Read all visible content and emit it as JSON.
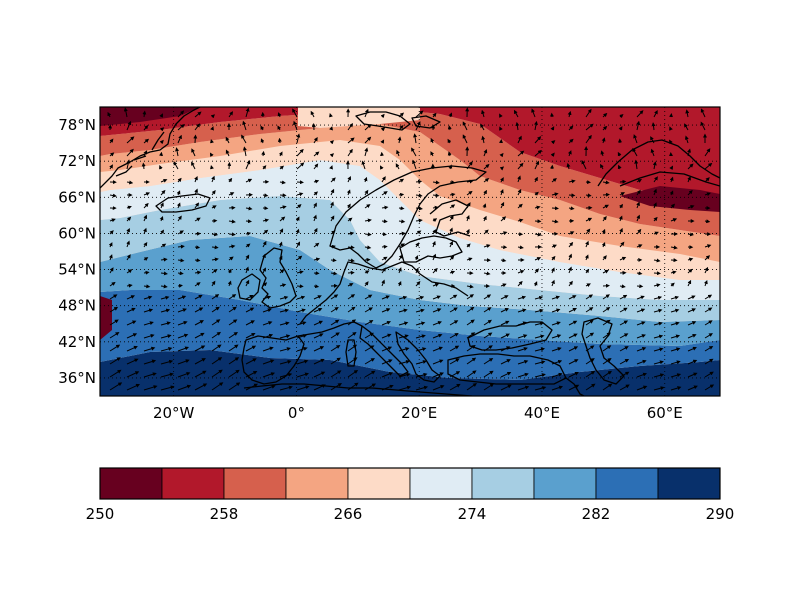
{
  "map": {
    "projection": "cylindrical",
    "lon_range": [
      -32,
      69
    ],
    "lat_range": [
      33,
      81
    ],
    "lat_ticks": [
      {
        "value": 36,
        "label": "36°N"
      },
      {
        "value": 42,
        "label": "42°N"
      },
      {
        "value": 48,
        "label": "48°N"
      },
      {
        "value": 54,
        "label": "54°N"
      },
      {
        "value": 60,
        "label": "60°N"
      },
      {
        "value": 66,
        "label": "66°N"
      },
      {
        "value": 72,
        "label": "72°N"
      },
      {
        "value": 78,
        "label": "78°N"
      }
    ],
    "lon_ticks": [
      {
        "value": -20,
        "label": "20°W"
      },
      {
        "value": 0,
        "label": "0°"
      },
      {
        "value": 20,
        "label": "20°E"
      },
      {
        "value": 40,
        "label": "40°E"
      },
      {
        "value": 60,
        "label": "60°E"
      }
    ],
    "grid": "dotted",
    "features": [
      "filled-contours",
      "wind-vectors",
      "coastlines"
    ]
  },
  "colorbar": {
    "orientation": "horizontal",
    "levels": [
      250,
      254,
      258,
      262,
      266,
      270,
      274,
      278,
      282,
      286,
      290
    ],
    "tick_labels": [
      "250",
      "258",
      "266",
      "274",
      "282",
      "290"
    ],
    "colors": [
      "#67001f",
      "#b2182b",
      "#d6604d",
      "#f4a582",
      "#fddbc7",
      "#e0ecf4",
      "#a6cee3",
      "#5aa0ce",
      "#2c6fb5",
      "#08306b"
    ]
  }
}
